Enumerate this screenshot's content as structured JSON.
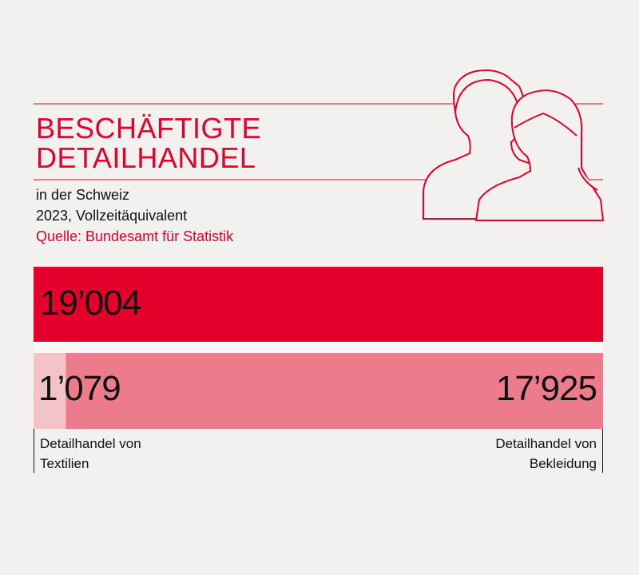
{
  "chart_data": {
    "type": "stacked-bar",
    "title": "BESCHÄFTIGTE DETAILHANDEL",
    "subtitle": [
      "in der Schweiz",
      "2023, Vollzeitäquivalent"
    ],
    "source": "Quelle: Bundesamt für Statistik",
    "total": {
      "value": 19004,
      "value_label": "19’004",
      "color": "#e4002b"
    },
    "series": [
      {
        "name": "Detailhandel von Textilien",
        "color": "#f2c3c9",
        "values": [
          1079
        ],
        "value_labels": [
          "1’079"
        ]
      },
      {
        "name": "Detailhandel von Bekleidung",
        "color": "#ec7b8b",
        "values": [
          17925
        ],
        "value_labels": [
          "17’925"
        ]
      }
    ],
    "xlim": [
      0,
      19004
    ]
  }
}
